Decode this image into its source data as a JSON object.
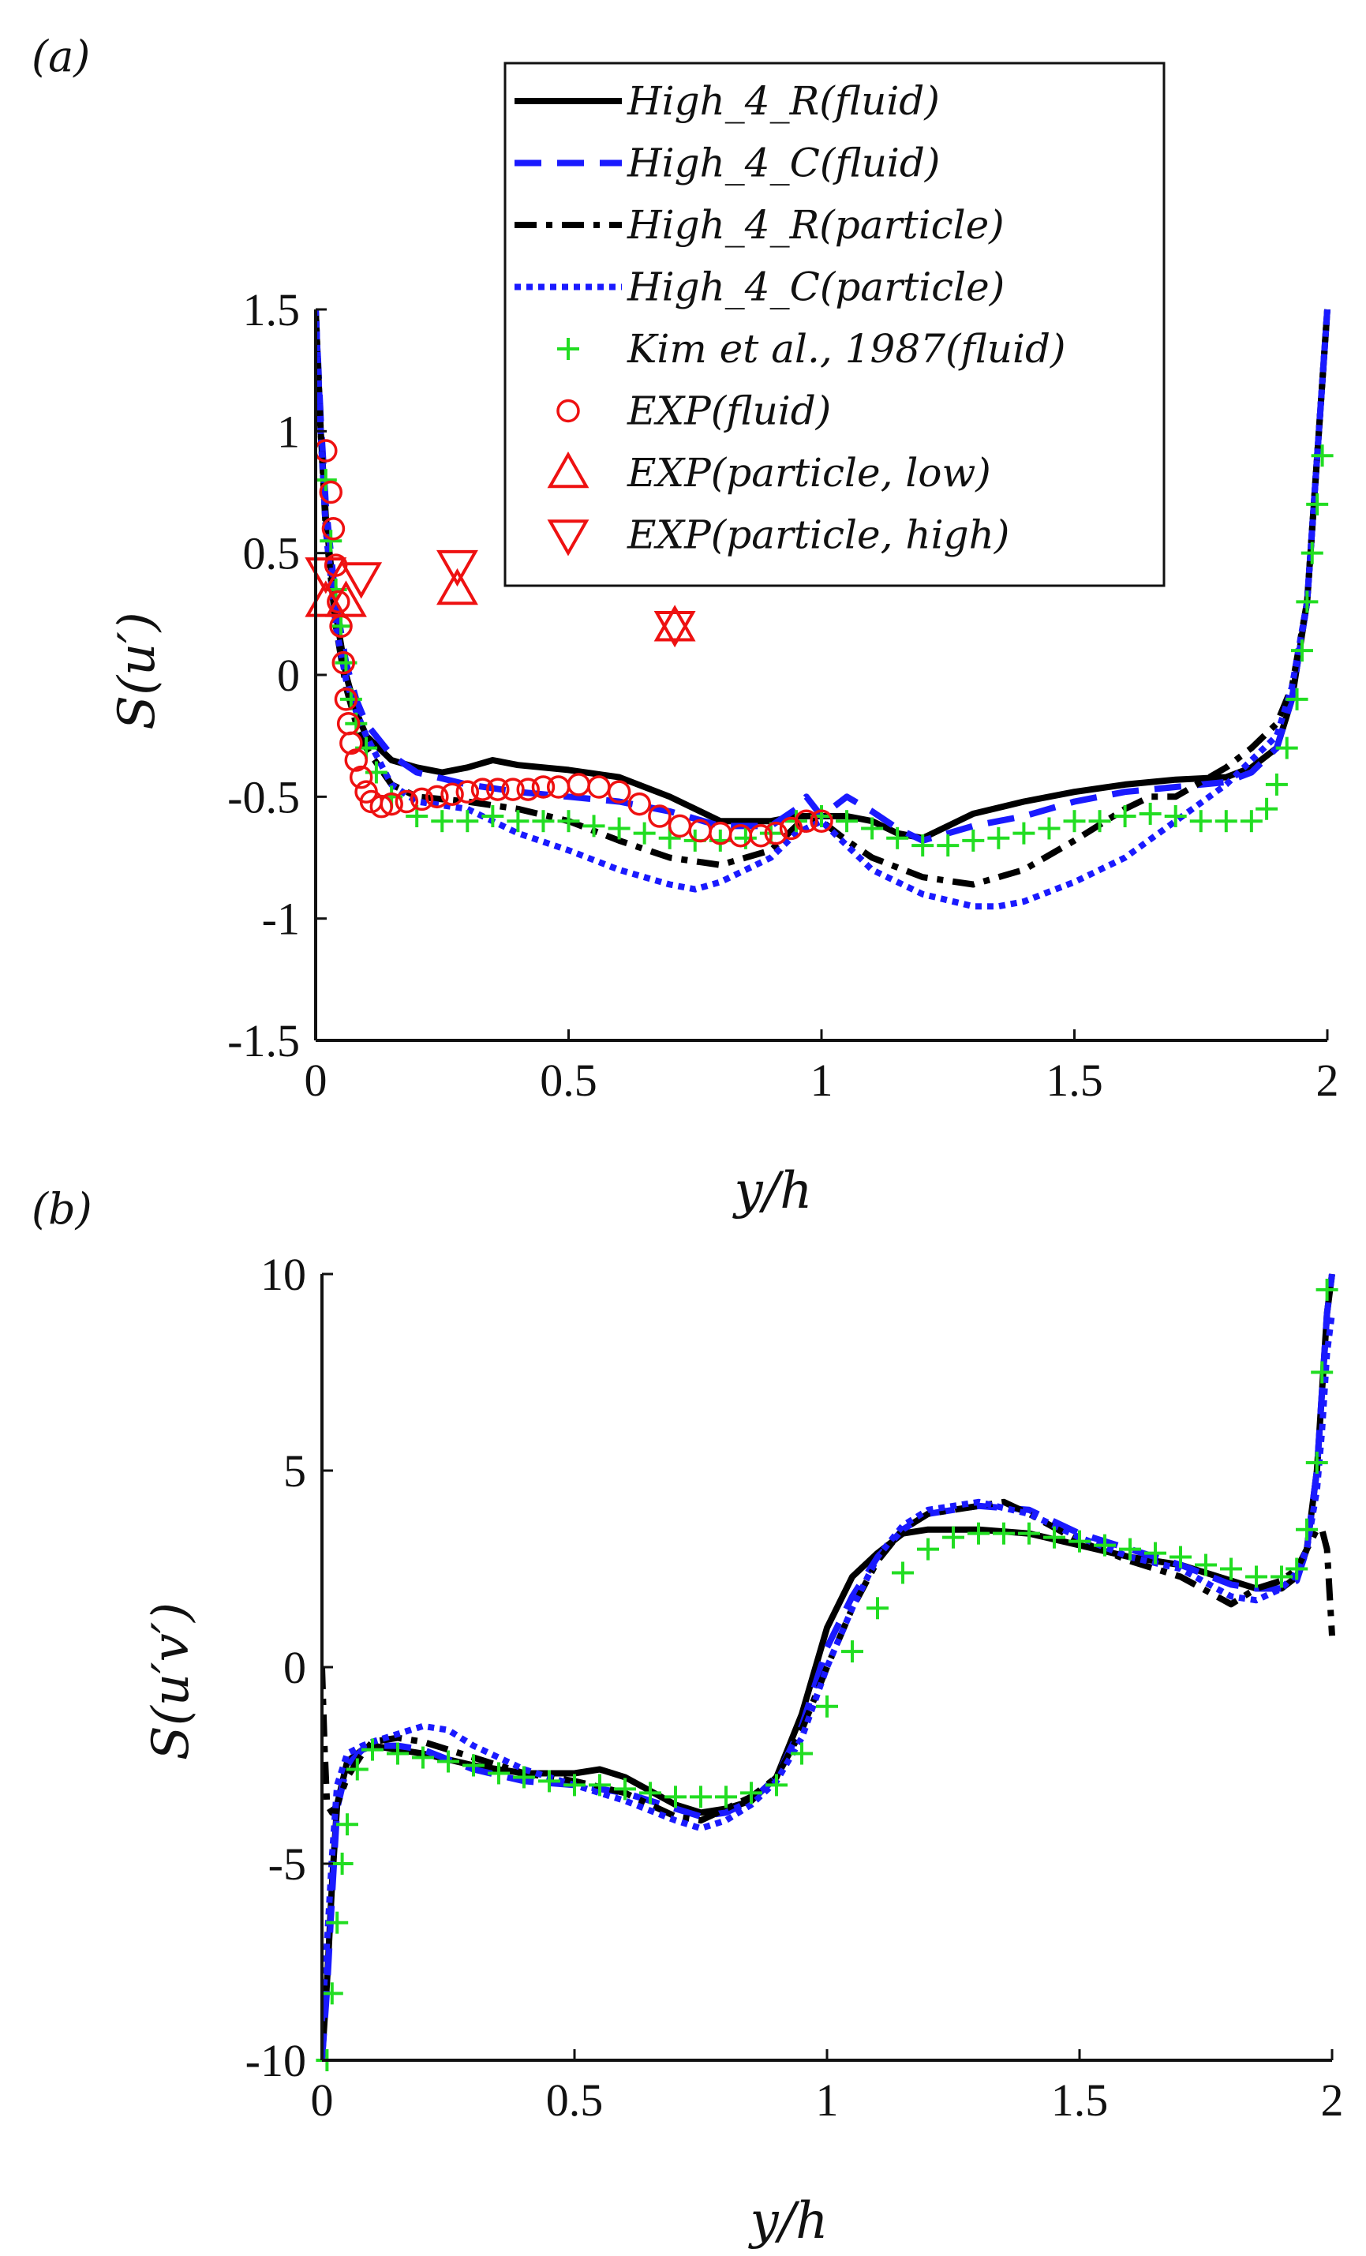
{
  "chart_data": [
    {
      "panel_label": "(a)",
      "type": "line",
      "xlabel": "y/h",
      "ylabel": "S(u′)",
      "xlim": [
        0,
        2
      ],
      "ylim": [
        -1.5,
        1.5
      ],
      "xticks": [
        "0",
        "0.5",
        "1",
        "1.5",
        "2"
      ],
      "yticks": [
        "1.5",
        "1",
        "0.5",
        "0",
        "-0.5",
        "-1",
        "-1.5"
      ],
      "legend_position": "top-right",
      "series": [
        {
          "name": "High_4_R(fluid)",
          "style": "solid",
          "color": "#000000",
          "x": [
            0.0,
            0.01,
            0.02,
            0.04,
            0.06,
            0.08,
            0.1,
            0.15,
            0.2,
            0.25,
            0.3,
            0.35,
            0.4,
            0.5,
            0.6,
            0.7,
            0.8,
            0.9,
            0.95,
            1.0,
            1.05,
            1.1,
            1.15,
            1.2,
            1.25,
            1.3,
            1.4,
            1.5,
            1.6,
            1.7,
            1.8,
            1.85,
            1.9,
            1.93,
            1.96,
            1.98,
            2.0
          ],
          "y": [
            1.5,
            1.0,
            0.65,
            0.25,
            0.0,
            -0.15,
            -0.25,
            -0.35,
            -0.38,
            -0.4,
            -0.38,
            -0.35,
            -0.37,
            -0.39,
            -0.42,
            -0.5,
            -0.6,
            -0.6,
            -0.58,
            -0.58,
            -0.58,
            -0.6,
            -0.65,
            -0.67,
            -0.62,
            -0.57,
            -0.52,
            -0.48,
            -0.45,
            -0.43,
            -0.42,
            -0.38,
            -0.3,
            -0.1,
            0.3,
            0.9,
            1.5
          ]
        },
        {
          "name": "High_4_C(fluid)",
          "style": "dashed",
          "color": "#1a1aff",
          "x": [
            0.0,
            0.01,
            0.02,
            0.04,
            0.06,
            0.08,
            0.1,
            0.15,
            0.2,
            0.3,
            0.4,
            0.5,
            0.6,
            0.7,
            0.8,
            0.9,
            0.95,
            0.97,
            1.0,
            1.05,
            1.1,
            1.15,
            1.2,
            1.3,
            1.4,
            1.5,
            1.6,
            1.7,
            1.8,
            1.85,
            1.9,
            1.93,
            1.96,
            1.98,
            2.0
          ],
          "y": [
            1.5,
            1.05,
            0.7,
            0.3,
            0.05,
            -0.1,
            -0.2,
            -0.33,
            -0.4,
            -0.45,
            -0.48,
            -0.5,
            -0.52,
            -0.56,
            -0.62,
            -0.62,
            -0.55,
            -0.5,
            -0.58,
            -0.5,
            -0.56,
            -0.63,
            -0.68,
            -0.62,
            -0.58,
            -0.52,
            -0.48,
            -0.46,
            -0.44,
            -0.4,
            -0.3,
            -0.1,
            0.3,
            0.9,
            1.5
          ]
        },
        {
          "name": "High_4_R(particle)",
          "style": "dashdot",
          "color": "#000000",
          "x": [
            0.0,
            0.01,
            0.02,
            0.04,
            0.06,
            0.08,
            0.1,
            0.15,
            0.2,
            0.3,
            0.4,
            0.5,
            0.6,
            0.7,
            0.8,
            0.9,
            0.95,
            1.0,
            1.05,
            1.1,
            1.2,
            1.3,
            1.4,
            1.5,
            1.6,
            1.65,
            1.7,
            1.8,
            1.85,
            1.9,
            1.93,
            1.96,
            1.98,
            2.0
          ],
          "y": [
            1.5,
            1.0,
            0.6,
            0.2,
            -0.05,
            -0.2,
            -0.3,
            -0.45,
            -0.5,
            -0.52,
            -0.55,
            -0.6,
            -0.68,
            -0.75,
            -0.78,
            -0.72,
            -0.62,
            -0.6,
            -0.68,
            -0.75,
            -0.83,
            -0.86,
            -0.8,
            -0.68,
            -0.55,
            -0.5,
            -0.5,
            -0.38,
            -0.3,
            -0.2,
            -0.05,
            0.3,
            0.9,
            1.5
          ]
        },
        {
          "name": "High_4_C(particle)",
          "style": "dotted",
          "color": "#1a1aff",
          "x": [
            0.0,
            0.01,
            0.02,
            0.04,
            0.06,
            0.08,
            0.1,
            0.15,
            0.2,
            0.3,
            0.4,
            0.5,
            0.6,
            0.7,
            0.75,
            0.8,
            0.9,
            0.95,
            1.0,
            1.05,
            1.1,
            1.2,
            1.3,
            1.35,
            1.4,
            1.5,
            1.6,
            1.7,
            1.8,
            1.85,
            1.9,
            1.93,
            1.96,
            1.98,
            2.0
          ],
          "y": [
            1.5,
            1.0,
            0.6,
            0.2,
            -0.02,
            -0.15,
            -0.25,
            -0.45,
            -0.52,
            -0.55,
            -0.65,
            -0.72,
            -0.8,
            -0.86,
            -0.88,
            -0.85,
            -0.75,
            -0.65,
            -0.6,
            -0.7,
            -0.8,
            -0.9,
            -0.95,
            -0.95,
            -0.93,
            -0.85,
            -0.75,
            -0.6,
            -0.45,
            -0.35,
            -0.25,
            -0.05,
            0.3,
            0.9,
            1.5
          ]
        },
        {
          "name": "Kim et al., 1987(fluid)",
          "style": "plus",
          "color": "#22dd22",
          "x": [
            0.02,
            0.03,
            0.04,
            0.05,
            0.06,
            0.07,
            0.08,
            0.1,
            0.12,
            0.15,
            0.2,
            0.25,
            0.3,
            0.35,
            0.4,
            0.45,
            0.5,
            0.55,
            0.6,
            0.65,
            0.7,
            0.75,
            0.8,
            0.85,
            0.9,
            0.95,
            1.0,
            1.05,
            1.1,
            1.15,
            1.2,
            1.25,
            1.3,
            1.35,
            1.4,
            1.45,
            1.5,
            1.55,
            1.6,
            1.65,
            1.7,
            1.75,
            1.8,
            1.85,
            1.88,
            1.9,
            1.92,
            1.94,
            1.95,
            1.96,
            1.97,
            1.98,
            1.99
          ],
          "y": [
            0.8,
            0.55,
            0.35,
            0.2,
            0.05,
            -0.1,
            -0.2,
            -0.3,
            -0.4,
            -0.5,
            -0.58,
            -0.6,
            -0.6,
            -0.58,
            -0.6,
            -0.6,
            -0.6,
            -0.62,
            -0.63,
            -0.65,
            -0.67,
            -0.68,
            -0.68,
            -0.67,
            -0.65,
            -0.6,
            -0.58,
            -0.6,
            -0.63,
            -0.67,
            -0.7,
            -0.7,
            -0.68,
            -0.67,
            -0.65,
            -0.63,
            -0.6,
            -0.6,
            -0.58,
            -0.57,
            -0.58,
            -0.6,
            -0.6,
            -0.6,
            -0.55,
            -0.45,
            -0.3,
            -0.1,
            0.1,
            0.3,
            0.5,
            0.7,
            0.9
          ]
        },
        {
          "name": "EXP(fluid)",
          "style": "circle",
          "color": "#ee1111",
          "x": [
            0.02,
            0.03,
            0.035,
            0.04,
            0.045,
            0.05,
            0.055,
            0.06,
            0.065,
            0.07,
            0.08,
            0.09,
            0.1,
            0.11,
            0.13,
            0.15,
            0.18,
            0.21,
            0.24,
            0.27,
            0.3,
            0.33,
            0.36,
            0.39,
            0.42,
            0.45,
            0.48,
            0.52,
            0.56,
            0.6,
            0.64,
            0.68,
            0.72,
            0.76,
            0.8,
            0.84,
            0.88,
            0.91,
            0.94,
            0.97,
            1.0
          ],
          "y": [
            0.92,
            0.75,
            0.6,
            0.45,
            0.3,
            0.2,
            0.05,
            -0.1,
            -0.2,
            -0.28,
            -0.35,
            -0.42,
            -0.48,
            -0.52,
            -0.54,
            -0.53,
            -0.52,
            -0.51,
            -0.5,
            -0.49,
            -0.48,
            -0.47,
            -0.47,
            -0.47,
            -0.47,
            -0.46,
            -0.46,
            -0.45,
            -0.46,
            -0.48,
            -0.53,
            -0.58,
            -0.62,
            -0.64,
            -0.65,
            -0.66,
            -0.66,
            -0.65,
            -0.63,
            -0.6,
            -0.6
          ]
        },
        {
          "name": "EXP(particle, low)",
          "style": "triangle-up",
          "color": "#ee1111",
          "x": [
            0.02,
            0.06,
            0.28,
            0.71
          ],
          "y": [
            0.3,
            0.3,
            0.35,
            0.2
          ]
        },
        {
          "name": "EXP(particle, high)",
          "style": "triangle-down",
          "color": "#ee1111",
          "x": [
            0.02,
            0.09,
            0.28,
            0.71
          ],
          "y": [
            0.42,
            0.4,
            0.45,
            0.2
          ]
        }
      ]
    },
    {
      "panel_label": "(b)",
      "type": "line",
      "xlabel": "y/h",
      "ylabel": "S(u′v′)",
      "xlim": [
        0,
        2
      ],
      "ylim": [
        -10,
        10
      ],
      "xticks": [
        "0",
        "0.5",
        "1",
        "1.5",
        "2"
      ],
      "yticks": [
        "10",
        "5",
        "0",
        "-5",
        "-10"
      ],
      "series": [
        {
          "name": "High_4_R(fluid)",
          "style": "solid",
          "color": "#000000",
          "x": [
            0.0,
            0.01,
            0.02,
            0.03,
            0.05,
            0.08,
            0.1,
            0.15,
            0.2,
            0.3,
            0.4,
            0.5,
            0.55,
            0.6,
            0.7,
            0.75,
            0.8,
            0.85,
            0.9,
            0.95,
            1.0,
            1.05,
            1.1,
            1.15,
            1.2,
            1.3,
            1.4,
            1.5,
            1.6,
            1.7,
            1.8,
            1.85,
            1.9,
            1.93,
            1.95,
            1.97,
            1.98,
            1.99,
            2.0
          ],
          "y": [
            -10.0,
            -8.0,
            -5.5,
            -3.5,
            -2.4,
            -2.1,
            -2.0,
            -2.1,
            -2.2,
            -2.5,
            -2.7,
            -2.7,
            -2.6,
            -2.8,
            -3.5,
            -3.7,
            -3.6,
            -3.4,
            -2.8,
            -1.2,
            1.0,
            2.3,
            2.9,
            3.4,
            3.5,
            3.5,
            3.4,
            3.1,
            2.8,
            2.6,
            2.2,
            2.0,
            2.0,
            2.3,
            3.0,
            5.0,
            7.0,
            9.0,
            10.0
          ]
        },
        {
          "name": "High_4_C(fluid)",
          "style": "dashed",
          "color": "#1a1aff",
          "x": [
            0.0,
            0.01,
            0.02,
            0.03,
            0.05,
            0.08,
            0.1,
            0.15,
            0.2,
            0.3,
            0.4,
            0.5,
            0.55,
            0.6,
            0.7,
            0.75,
            0.8,
            0.85,
            0.9,
            0.95,
            1.0,
            1.05,
            1.1,
            1.15,
            1.2,
            1.3,
            1.4,
            1.5,
            1.6,
            1.7,
            1.8,
            1.85,
            1.9,
            1.93,
            1.95,
            1.97,
            1.98,
            1.99,
            2.0
          ],
          "y": [
            -10.0,
            -8.2,
            -5.8,
            -3.6,
            -2.5,
            -2.1,
            -2.0,
            -2.0,
            -2.1,
            -2.6,
            -2.9,
            -3.0,
            -3.1,
            -3.2,
            -3.6,
            -3.8,
            -3.7,
            -3.4,
            -2.8,
            -1.5,
            0.5,
            1.8,
            2.8,
            3.5,
            3.9,
            4.1,
            4.0,
            3.4,
            3.0,
            2.6,
            2.1,
            2.0,
            2.0,
            2.2,
            3.0,
            5.0,
            7.0,
            9.0,
            10.0
          ]
        },
        {
          "name": "High_4_R(particle)",
          "style": "dashdot",
          "color": "#000000",
          "x": [
            0.0,
            0.005,
            0.01,
            0.02,
            0.03,
            0.05,
            0.08,
            0.1,
            0.15,
            0.2,
            0.3,
            0.4,
            0.5,
            0.6,
            0.7,
            0.75,
            0.8,
            0.85,
            0.9,
            0.95,
            1.0,
            1.05,
            1.1,
            1.15,
            1.2,
            1.3,
            1.35,
            1.4,
            1.5,
            1.6,
            1.7,
            1.8,
            1.85,
            1.9,
            1.93,
            1.95,
            1.97,
            1.98,
            1.99,
            2.0
          ],
          "y": [
            0.0,
            -2.0,
            -3.5,
            -3.7,
            -3.5,
            -2.8,
            -2.2,
            -1.9,
            -1.8,
            -1.9,
            -2.3,
            -2.7,
            -2.9,
            -3.2,
            -3.8,
            -3.9,
            -3.6,
            -3.3,
            -2.8,
            -1.6,
            0.0,
            1.5,
            2.7,
            3.5,
            3.9,
            4.1,
            4.2,
            3.9,
            3.2,
            2.7,
            2.3,
            1.6,
            2.0,
            2.2,
            2.5,
            3.0,
            3.5,
            3.5,
            3.0,
            0.8
          ]
        },
        {
          "name": "High_4_C(particle)",
          "style": "dotted",
          "color": "#1a1aff",
          "x": [
            0.0,
            0.01,
            0.02,
            0.03,
            0.05,
            0.08,
            0.1,
            0.15,
            0.2,
            0.25,
            0.3,
            0.4,
            0.5,
            0.6,
            0.7,
            0.75,
            0.8,
            0.85,
            0.9,
            0.95,
            1.0,
            1.05,
            1.1,
            1.15,
            1.2,
            1.3,
            1.4,
            1.5,
            1.6,
            1.7,
            1.8,
            1.85,
            1.9,
            1.93,
            1.95,
            1.97,
            1.98,
            1.99,
            2.0
          ],
          "y": [
            -9.0,
            -7.0,
            -4.8,
            -3.0,
            -2.2,
            -2.0,
            -1.9,
            -1.7,
            -1.5,
            -1.6,
            -2.0,
            -2.6,
            -3.0,
            -3.4,
            -3.9,
            -4.1,
            -3.9,
            -3.5,
            -2.9,
            -1.8,
            0.0,
            1.5,
            2.8,
            3.6,
            4.0,
            4.2,
            3.9,
            3.3,
            2.8,
            2.5,
            1.8,
            1.7,
            2.0,
            2.4,
            3.0,
            4.5,
            6.0,
            8.0,
            9.0
          ]
        },
        {
          "name": "Kim et al., 1987(fluid)",
          "style": "plus",
          "color": "#22dd22",
          "x": [
            0.01,
            0.02,
            0.03,
            0.04,
            0.05,
            0.07,
            0.1,
            0.15,
            0.2,
            0.25,
            0.3,
            0.35,
            0.4,
            0.45,
            0.5,
            0.55,
            0.6,
            0.65,
            0.7,
            0.75,
            0.8,
            0.85,
            0.9,
            0.95,
            1.0,
            1.05,
            1.1,
            1.15,
            1.2,
            1.25,
            1.3,
            1.35,
            1.4,
            1.45,
            1.5,
            1.55,
            1.6,
            1.65,
            1.7,
            1.75,
            1.8,
            1.85,
            1.9,
            1.93,
            1.95,
            1.97,
            1.98,
            1.99
          ],
          "y": [
            -10.0,
            -8.3,
            -6.5,
            -5.0,
            -4.0,
            -2.6,
            -2.1,
            -2.2,
            -2.3,
            -2.4,
            -2.5,
            -2.7,
            -2.8,
            -2.9,
            -3.0,
            -3.0,
            -3.1,
            -3.2,
            -3.3,
            -3.3,
            -3.3,
            -3.2,
            -3.0,
            -2.2,
            -1.0,
            0.4,
            1.5,
            2.4,
            3.0,
            3.3,
            3.4,
            3.4,
            3.4,
            3.3,
            3.2,
            3.1,
            3.0,
            2.9,
            2.8,
            2.6,
            2.5,
            2.3,
            2.3,
            2.5,
            3.5,
            5.2,
            7.5,
            9.6
          ]
        }
      ]
    }
  ]
}
